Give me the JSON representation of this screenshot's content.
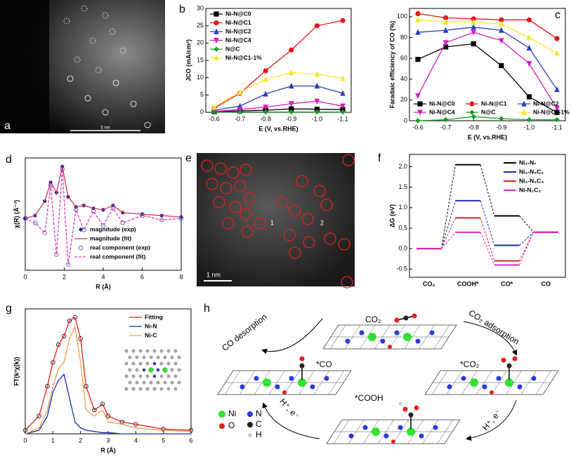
{
  "figure": {
    "panel_labels": [
      "a",
      "b",
      "c",
      "d",
      "e",
      "f",
      "g",
      "h"
    ],
    "panel_a": {
      "scale_bar": "5 nm"
    },
    "panel_e": {
      "scale_bar": "1 nm",
      "sites": [
        "1",
        "2"
      ]
    },
    "panel_h": {
      "molecule_top": "CO₂",
      "step_adsorption": "CO₂ adsorption",
      "state_co2": "*CO₂",
      "step_right": "H⁺, e⁻",
      "state_cooh": "*COOH",
      "step_left": "H⁺, e⁻",
      "state_co": "*CO",
      "step_desorption": "CO desorption",
      "legend": [
        "Ni",
        "O",
        "N",
        "C",
        "H"
      ]
    }
  },
  "chart_data": [
    {
      "type": "line",
      "xlabel": "E (V, vs.RHE)",
      "ylabel": "JCO (mA/cm²)",
      "categories": [
        "-0.6",
        "-0.7",
        "-0.8",
        "-0.9",
        "-1.0",
        "-1.1"
      ],
      "ylim": [
        0,
        30
      ],
      "yticks": [
        0,
        5,
        10,
        15,
        20,
        25,
        30
      ],
      "legend": "upper left",
      "series": [
        {
          "name": "Ni-N@C0",
          "color": "#000000",
          "marker": "square",
          "values": [
            0.2,
            0.4,
            0.6,
            1.0,
            0.9,
            0.8
          ]
        },
        {
          "name": "Ni-N@C1",
          "color": "#e8141c",
          "marker": "circle",
          "values": [
            1.2,
            5.5,
            12,
            18,
            25,
            26.5
          ]
        },
        {
          "name": "Ni-N@C2",
          "color": "#2b3fbf",
          "marker": "triangle",
          "values": [
            0.6,
            1.8,
            5.3,
            7.6,
            7.6,
            5.5
          ]
        },
        {
          "name": "Ni-N@C4",
          "color": "#d11fc0",
          "marker": "triangle-down",
          "values": [
            0.3,
            0.8,
            1.5,
            2.5,
            3.2,
            1.8
          ]
        },
        {
          "name": "N@C",
          "color": "#1c9e2a",
          "marker": "diamond",
          "values": [
            0.1,
            0.1,
            0.1,
            0.1,
            0.1,
            0.1
          ]
        },
        {
          "name": "Ni-N@C1-1%",
          "color": "#f5e632",
          "marker": "triangle",
          "values": [
            1.5,
            5.8,
            9.5,
            11.5,
            11,
            9.8
          ]
        }
      ]
    },
    {
      "type": "line",
      "xlabel": "E (V, vs.RHE)",
      "ylabel": "Faradaic efficiency of CO (%)",
      "categories": [
        "-0.6",
        "-0.7",
        "-0.8",
        "-0.9",
        "-1.0",
        "-1.1"
      ],
      "ylim": [
        0,
        108
      ],
      "yticks": [
        0,
        20,
        40,
        60,
        80,
        100
      ],
      "legend": "lower center",
      "series": [
        {
          "name": "Ni-N@C0",
          "color": "#000000",
          "marker": "square",
          "values": [
            59,
            71,
            74,
            53,
            23,
            8
          ]
        },
        {
          "name": "Ni-N@C1",
          "color": "#e8141c",
          "marker": "circle",
          "values": [
            103,
            99,
            98,
            97,
            97,
            79
          ]
        },
        {
          "name": "Ni-N@C2",
          "color": "#2b3fbf",
          "marker": "triangle",
          "values": [
            85,
            87,
            90,
            87,
            70,
            30
          ]
        },
        {
          "name": "Ni-N@C4",
          "color": "#d11fc0",
          "marker": "triangle-down",
          "values": [
            24,
            75,
            85,
            77,
            55,
            12
          ]
        },
        {
          "name": "N@C",
          "color": "#1c9e2a",
          "marker": "diamond",
          "values": [
            0,
            1,
            4,
            2,
            1,
            1
          ]
        },
        {
          "name": "Ni-N@C1-1%",
          "color": "#f5e632",
          "marker": "triangle",
          "values": [
            97,
            95,
            95,
            93,
            80,
            65
          ]
        }
      ]
    },
    {
      "type": "line",
      "xlabel": "R (Å)",
      "ylabel": "χ(R) (Å⁻³)",
      "x": [
        0,
        0.5,
        1,
        1.3,
        1.6,
        1.9,
        2.2,
        2.6,
        3,
        3.5,
        4,
        4.5,
        5,
        6,
        7,
        8
      ],
      "xlim": [
        0,
        8
      ],
      "xticks": [
        0,
        2,
        4,
        6,
        8
      ],
      "ylim": [
        -3.6,
        4.2
      ],
      "legend": "lower right",
      "series": [
        {
          "name": "magnitude (exp)",
          "color": "#1f2a80",
          "marker": "dot",
          "line": false,
          "values": [
            0,
            0.2,
            1.2,
            2.5,
            1.8,
            3.6,
            1.5,
            0.8,
            0.9,
            0.7,
            0.6,
            0.9,
            0.4,
            0.3,
            0.2,
            0.1
          ]
        },
        {
          "name": "magnitude (fit)",
          "color": "#d6336c",
          "marker": "none",
          "values": [
            0,
            0.2,
            1.2,
            2.5,
            1.8,
            3.6,
            1.5,
            0.8,
            0.9,
            0.7,
            0.6,
            0.9,
            0.4,
            0.3,
            0.2,
            0.1
          ]
        },
        {
          "name": "real component (exp)",
          "color": "#4b4fb0",
          "marker": "open-circle",
          "line": false,
          "values": [
            0,
            -0.3,
            -1,
            2.3,
            -2.5,
            3.4,
            -3.2,
            0.6,
            -0.8,
            0.5,
            -0.5,
            0.7,
            -0.3,
            0.2,
            -0.1,
            0
          ]
        },
        {
          "name": "real component (fit)",
          "color": "#d63fb0",
          "marker": "none",
          "dash": true,
          "values": [
            0,
            -0.3,
            -1,
            2.3,
            -2.5,
            3.4,
            -3.2,
            0.6,
            -0.8,
            0.5,
            -0.5,
            0.7,
            -0.3,
            0.2,
            -0.1,
            0
          ]
        }
      ]
    },
    {
      "type": "energy",
      "ylabel": "ΔG (eV)",
      "categories": [
        "CO₂",
        "COOH*",
        "CO*",
        "CO"
      ],
      "ylim": [
        -0.7,
        2.3
      ],
      "yticks": [
        -0.5,
        {
          "value": 0,
          "label": "0.0"
        },
        0.5,
        {
          "value": 1,
          "label": "1.0"
        },
        1.5,
        {
          "value": 2,
          "label": "2.0"
        }
      ],
      "legend": "upper right",
      "series": [
        {
          "name": "Ni₂-N₇",
          "color": "#000000",
          "values": [
            0,
            2.05,
            0.8,
            0.4
          ]
        },
        {
          "name": "Ni₂-N₅C₂",
          "color": "#1a2ab8",
          "values": [
            0,
            1.17,
            0.08,
            0.4
          ]
        },
        {
          "name": "Ni₂-N₃C₄",
          "color": "#e0202a",
          "values": [
            0,
            0.75,
            -0.3,
            0.4
          ]
        },
        {
          "name": "Ni-N₂C₂",
          "color": "#d42fc4",
          "values": [
            0,
            0.4,
            -0.4,
            0.4
          ]
        }
      ]
    },
    {
      "type": "line",
      "xlabel": "R (Å)",
      "ylabel": "FT(k²χ(k))",
      "x": [
        0,
        0.5,
        0.8,
        1,
        1.2,
        1.4,
        1.6,
        1.8,
        2,
        2.2,
        2.5,
        2.8,
        3,
        3.5,
        4,
        5,
        6
      ],
      "xlim": [
        0,
        6
      ],
      "xticks": [
        0,
        1,
        2,
        3,
        4,
        5,
        6
      ],
      "ylim": [
        0,
        10.5
      ],
      "legend": "upper right",
      "series": [
        {
          "color": "#000000",
          "marker": "open-circle",
          "line": false,
          "values": [
            0.3,
            1.5,
            4,
            6,
            7.5,
            8.2,
            9.5,
            9.8,
            8,
            4,
            2,
            2.5,
            1.5,
            1,
            0.8,
            0.4,
            0.3
          ]
        },
        {
          "name": "Fitting",
          "color": "#e02020",
          "marker": "none",
          "values": [
            0.3,
            1.5,
            4,
            6,
            7.5,
            8.2,
            9.5,
            9.8,
            8,
            4,
            2,
            2.5,
            1.5,
            1,
            0.8,
            0.4,
            0.3
          ]
        },
        {
          "name": "Ni-N",
          "color": "#1a2ab8",
          "marker": "none",
          "values": [
            0,
            0.3,
            1.5,
            3.5,
            4.5,
            5,
            3,
            1,
            0.5,
            0.3,
            0.2,
            0.1,
            0.1,
            0,
            0,
            0,
            0
          ]
        },
        {
          "name": "Ni-C",
          "color": "#f0a050",
          "marker": "none",
          "values": [
            0,
            0.5,
            2,
            4,
            5.5,
            6,
            8,
            9,
            6,
            2,
            1.5,
            2,
            1,
            0.8,
            0.5,
            0.3,
            0.2
          ]
        }
      ]
    }
  ]
}
